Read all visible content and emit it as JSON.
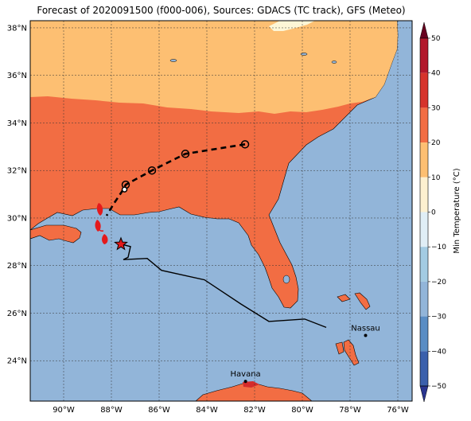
{
  "title": "Forecast of 2020091500 (f000-006), Sources: GDACS (TC track), GFS (Meteo)",
  "map": {
    "lon_range": [
      -91.4,
      -75.4
    ],
    "lat_range": [
      22.3,
      38.3
    ],
    "lon_ticks": [
      {
        "value": -90,
        "label": "90°W"
      },
      {
        "value": -88,
        "label": "88°W"
      },
      {
        "value": -86,
        "label": "86°W"
      },
      {
        "value": -84,
        "label": "84°W"
      },
      {
        "value": -82,
        "label": "82°W"
      },
      {
        "value": -80,
        "label": "80°W"
      },
      {
        "value": -78,
        "label": "78°W"
      },
      {
        "value": -76,
        "label": "76°W"
      }
    ],
    "lat_ticks": [
      {
        "value": 24,
        "label": "24°N"
      },
      {
        "value": 26,
        "label": "26°N"
      },
      {
        "value": 28,
        "label": "28°N"
      },
      {
        "value": 30,
        "label": "30°N"
      },
      {
        "value": 32,
        "label": "32°N"
      },
      {
        "value": 34,
        "label": "34°N"
      },
      {
        "value": 36,
        "label": "36°N"
      },
      {
        "value": 38,
        "label": "38°N"
      }
    ],
    "colors": {
      "ocean": "#92b5d9",
      "land_20_30": "#f26d43",
      "land_10_20": "#fdbf72",
      "land_0_10": "#fdf6d6",
      "red_30_40": "#d52c2b",
      "track": "#000000",
      "marker_red": "#e41a1c"
    }
  },
  "cities": [
    {
      "name": "Havana",
      "lon": -82.38,
      "lat": 23.13
    },
    {
      "name": "Nassau",
      "lon": -77.35,
      "lat": 25.06
    }
  ],
  "storm": {
    "forecast_track": [
      {
        "lon": -82.4,
        "lat": 33.1
      },
      {
        "lon": -84.9,
        "lat": 32.7
      },
      {
        "lon": -86.3,
        "lat": 32.0
      },
      {
        "lon": -87.4,
        "lat": 31.4
      },
      {
        "lon": -87.5,
        "lat": 31.2
      },
      {
        "lon": -87.9,
        "lat": 30.6
      },
      {
        "lon": -88.2,
        "lat": 30.1
      }
    ],
    "forecast_points": [
      {
        "lon": -82.4,
        "lat": 33.1,
        "kind": "circle"
      },
      {
        "lon": -84.9,
        "lat": 32.7,
        "kind": "circle"
      },
      {
        "lon": -86.3,
        "lat": 32.0,
        "kind": "circle"
      },
      {
        "lon": -87.4,
        "lat": 31.4,
        "kind": "circle"
      },
      {
        "lon": -87.45,
        "lat": 31.2,
        "kind": "small"
      }
    ],
    "past_track": [
      {
        "lon": -79.0,
        "lat": 25.4
      },
      {
        "lon": -79.9,
        "lat": 25.75
      },
      {
        "lon": -81.4,
        "lat": 25.65
      },
      {
        "lon": -82.6,
        "lat": 26.4
      },
      {
        "lon": -84.1,
        "lat": 27.4
      },
      {
        "lon": -85.9,
        "lat": 27.8
      },
      {
        "lon": -86.5,
        "lat": 28.3
      },
      {
        "lon": -87.5,
        "lat": 28.25
      },
      {
        "lon": -87.3,
        "lat": 28.35
      },
      {
        "lon": -87.2,
        "lat": 28.8
      },
      {
        "lon": -87.6,
        "lat": 28.9
      }
    ],
    "current_position": {
      "lon": -87.6,
      "lat": 28.9
    }
  },
  "colorbar": {
    "label": "Min Temperature (°C)",
    "ticks": [
      "50",
      "40",
      "30",
      "20",
      "10",
      "0",
      "−10",
      "−20",
      "−30",
      "−40",
      "−50"
    ],
    "colors": [
      "#67001f",
      "#b2182b",
      "#d6342c",
      "#f26d43",
      "#fdbf72",
      "#fdf0d0",
      "#e0eef6",
      "#a3cbe2",
      "#92b5d9",
      "#5a8dc4",
      "#3b60ac",
      "#2a3590"
    ]
  }
}
